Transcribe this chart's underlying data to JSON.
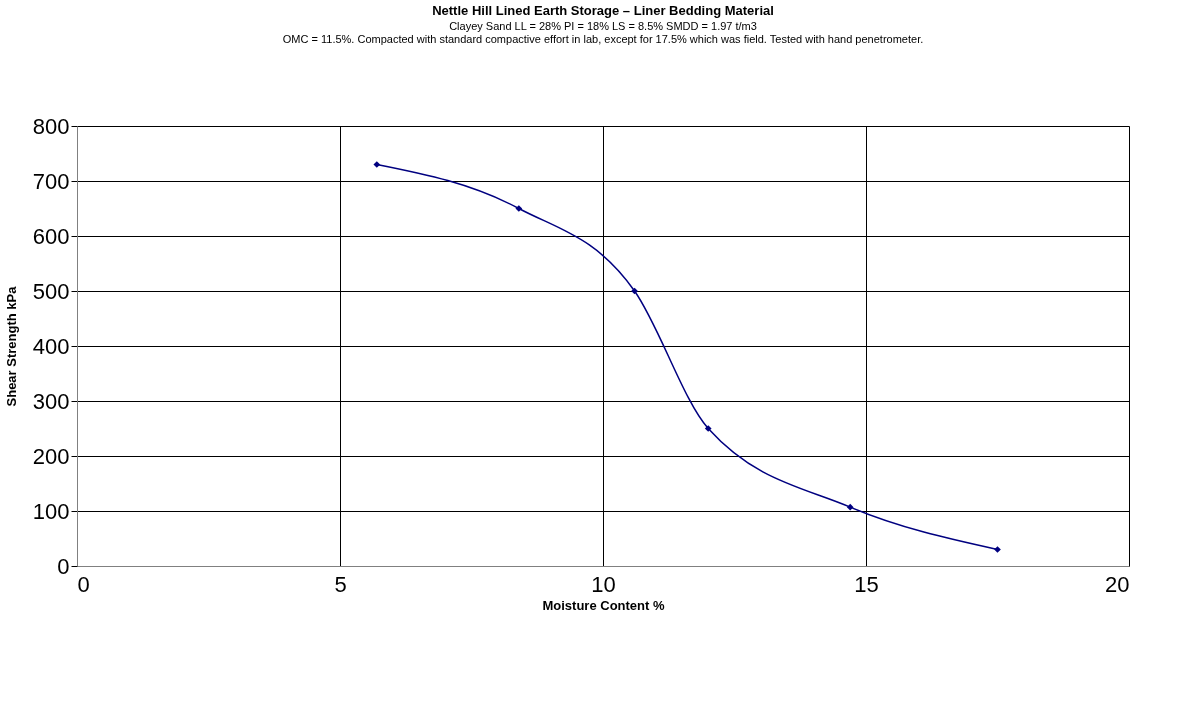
{
  "chart_data": {
    "type": "line",
    "title": "Nettle Hill Lined Earth Storage – Liner Bedding Material",
    "subtitle": [
      "Clayey Sand  LL = 28%  PI = 18%  LS = 8.5%  SMDD = 1.97 t/m3",
      "OMC = 11.5%.  Compacted with standard compactive effort in lab, except for 17.5% which was field. Tested with hand penetrometer."
    ],
    "xlabel": "Moisture Content %",
    "ylabel": "Shear Strength kPa",
    "x": [
      5.7,
      8.4,
      10.6,
      12.0,
      14.7,
      17.5
    ],
    "series": [
      {
        "color": "#000080",
        "values": [
          730,
          650,
          500,
          250,
          107,
          30
        ]
      }
    ],
    "xlim": [
      0,
      20
    ],
    "xticks": [
      0,
      5,
      10,
      15,
      20
    ],
    "ylim": [
      0,
      800
    ],
    "yticks": [
      0,
      100,
      200,
      300,
      400,
      500,
      600,
      700,
      800
    ],
    "grid": true,
    "legend": false,
    "marker": "diamond",
    "line_style": "solid"
  }
}
